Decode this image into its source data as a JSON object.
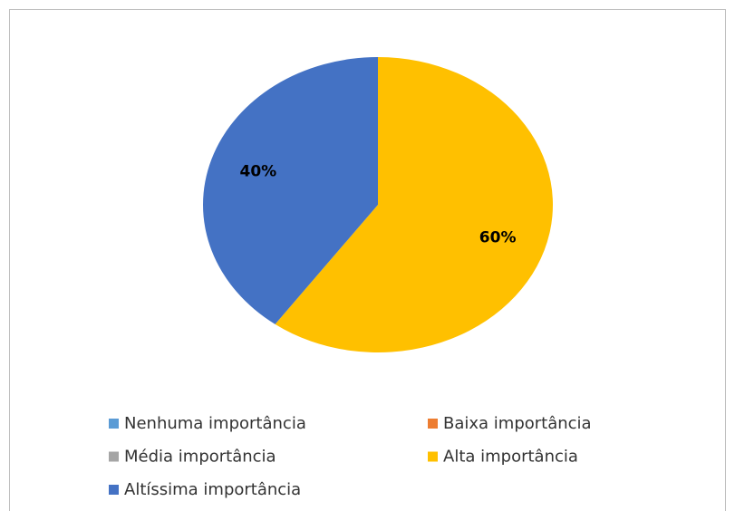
{
  "chart_data": {
    "type": "pie",
    "categories": [
      "Nenhuma importância",
      "Baixa importância",
      "Média importância",
      "Alta importância",
      "Altíssima importância"
    ],
    "values": [
      0,
      0,
      0,
      60,
      40
    ],
    "value_labels": [
      null,
      null,
      null,
      "60%",
      "40%"
    ],
    "colors": [
      "#5b9bd5",
      "#ed7d31",
      "#a5a5a5",
      "#ffc000",
      "#4472c4"
    ]
  }
}
